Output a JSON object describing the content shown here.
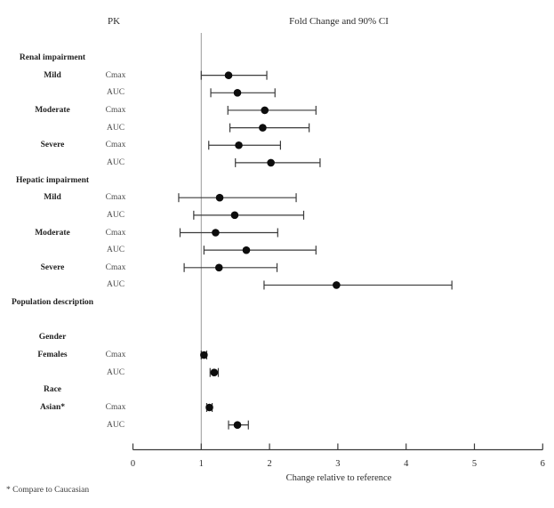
{
  "header": {
    "pk_label": "PK",
    "plot_title": "Fold Change and 90% CI"
  },
  "footnote": "* Compare to Caucasian",
  "colors": {
    "point": "#0d0d0d",
    "ci_line": "#3b3b3b",
    "axis": "#3b3b3b",
    "reference_line": "#9a9a9a",
    "text": "#2b2b2b"
  },
  "chart_data": {
    "type": "scatter",
    "subtype": "forest-plot",
    "title": "Fold Change and 90% CI",
    "left_column_header": "PK",
    "xlabel": "Change relative to reference",
    "xlim": [
      0,
      6
    ],
    "xticks": [
      0,
      1,
      2,
      3,
      4,
      5,
      6
    ],
    "reference_line_x": 1,
    "ci_level": "90% CI",
    "rows": [
      {
        "type": "header",
        "label": "Renal impairment"
      },
      {
        "type": "row",
        "group": "Mild",
        "param": "Cmax",
        "est": 1.4,
        "lo": 1.0,
        "hi": 1.96
      },
      {
        "type": "row",
        "group": "",
        "param": "AUC",
        "est": 1.53,
        "lo": 1.14,
        "hi": 2.08
      },
      {
        "type": "row",
        "group": "Moderate",
        "param": "Cmax",
        "est": 1.93,
        "lo": 1.39,
        "hi": 2.68
      },
      {
        "type": "row",
        "group": "",
        "param": "AUC",
        "est": 1.9,
        "lo": 1.42,
        "hi": 2.58
      },
      {
        "type": "row",
        "group": "Severe",
        "param": "Cmax",
        "est": 1.55,
        "lo": 1.11,
        "hi": 2.16
      },
      {
        "type": "row",
        "group": "",
        "param": "AUC",
        "est": 2.02,
        "lo": 1.5,
        "hi": 2.74
      },
      {
        "type": "header",
        "label": "Hepatic impairment"
      },
      {
        "type": "row",
        "group": "Mild",
        "param": "Cmax",
        "est": 1.27,
        "lo": 0.67,
        "hi": 2.39
      },
      {
        "type": "row",
        "group": "",
        "param": "AUC",
        "est": 1.49,
        "lo": 0.89,
        "hi": 2.5
      },
      {
        "type": "row",
        "group": "Moderate",
        "param": "Cmax",
        "est": 1.21,
        "lo": 0.69,
        "hi": 2.12
      },
      {
        "type": "row",
        "group": "",
        "param": "AUC",
        "est": 1.66,
        "lo": 1.04,
        "hi": 2.68
      },
      {
        "type": "row",
        "group": "Severe",
        "param": "Cmax",
        "est": 1.26,
        "lo": 0.75,
        "hi": 2.11
      },
      {
        "type": "row",
        "group": "",
        "param": "AUC",
        "est": 2.98,
        "lo": 1.92,
        "hi": 4.67
      },
      {
        "type": "header",
        "label": "Population description"
      },
      {
        "type": "spacer",
        "label": ""
      },
      {
        "type": "header",
        "label": "Gender"
      },
      {
        "type": "row",
        "group": "Females",
        "param": "Cmax",
        "est": 1.04,
        "lo": 1.0,
        "hi": 1.08
      },
      {
        "type": "row",
        "group": "",
        "param": "AUC",
        "est": 1.19,
        "lo": 1.13,
        "hi": 1.25
      },
      {
        "type": "header",
        "label": "Race"
      },
      {
        "type": "row",
        "group": "Asian*",
        "param": "Cmax",
        "est": 1.12,
        "lo": 1.08,
        "hi": 1.16
      },
      {
        "type": "row",
        "group": "",
        "param": "AUC",
        "est": 1.53,
        "lo": 1.4,
        "hi": 1.69
      }
    ]
  }
}
